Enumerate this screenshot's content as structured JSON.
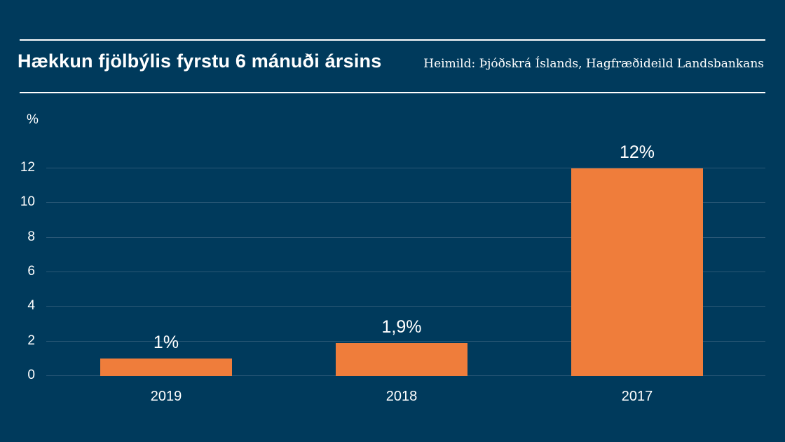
{
  "page": {
    "title": "Hækkun fjölbýlis fyrstu 6 mánuði ársins",
    "source": "Heimild: Þjóðskrá Íslands, Hagfræðideild Landsbankans"
  },
  "chart_data": {
    "type": "bar",
    "title": "Hækkun fjölbýlis fyrstu 6 mánuði ársins",
    "categories": [
      "2019",
      "2018",
      "2017"
    ],
    "values": [
      1,
      1.9,
      12
    ],
    "value_labels": [
      "1%",
      "1,9%",
      "12%"
    ],
    "xlabel": "",
    "ylabel": "%",
    "yticks": [
      0,
      2,
      4,
      6,
      8,
      10,
      12
    ],
    "ylim": [
      0,
      12
    ],
    "grid": true,
    "legend": "none",
    "colors": {
      "background": "#003A5C",
      "bar": "#EF7D3B",
      "gridline": "#2A5876",
      "text": "#FFFFFF"
    }
  }
}
